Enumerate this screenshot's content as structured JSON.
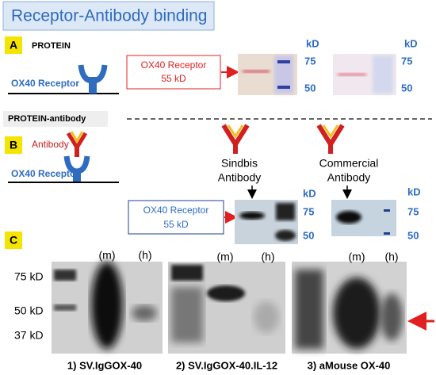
{
  "title": "Receptor-Antibody binding",
  "panel_a": {
    "label": "A",
    "heading": "PROTEIN",
    "receptor_label": "OX40 Receptor",
    "box": [
      "OX40 Receptor",
      "55 kD"
    ],
    "blots": [
      {
        "unit": "kD",
        "markers": [
          "75",
          "50"
        ]
      },
      {
        "unit": "kD",
        "markers": [
          "75",
          "50"
        ]
      }
    ]
  },
  "panel_b": {
    "label": "B",
    "heading": "PROTEIN-antibody",
    "antibody_label": "Antibody",
    "receptor_label": "OX40 Receptor",
    "antibodies": [
      [
        "Sindbis",
        "Antibody"
      ],
      [
        "Commercial",
        "Antibody"
      ]
    ],
    "box": [
      "OX40 Receptor",
      "55 kD"
    ],
    "blots": [
      {
        "unit": "kD",
        "markers": [
          "75",
          "50"
        ]
      },
      {
        "unit": "kD",
        "markers": [
          "75",
          "50"
        ]
      }
    ]
  },
  "panel_c": {
    "label": "C",
    "markers": [
      "75 kD",
      "50 kD",
      "37 kD"
    ],
    "blots": [
      {
        "lanes": [
          "(m)",
          "(h)"
        ],
        "caption": "1) SV.IgGOX-40"
      },
      {
        "lanes": [
          "(m)",
          "(h)"
        ],
        "caption": "2) SV.IgGOX-40.IL-12"
      },
      {
        "lanes": [
          "(m)",
          "(h)"
        ],
        "caption": "3) aMouse OX-40"
      }
    ]
  }
}
